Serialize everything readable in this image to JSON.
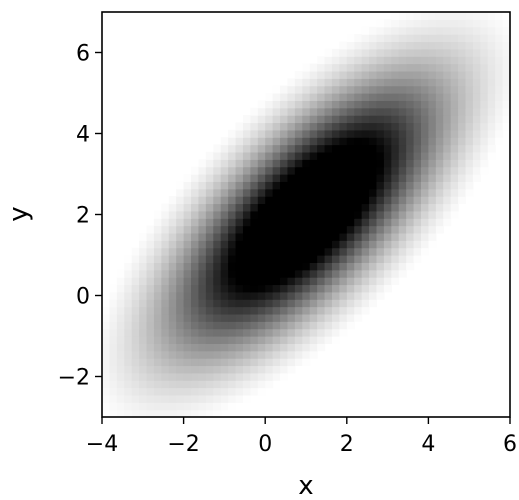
{
  "chart_data": {
    "type": "heatmap",
    "title": "",
    "xlabel": "x",
    "ylabel": "y",
    "xlim": [
      -4,
      6
    ],
    "ylim": [
      -3,
      7
    ],
    "x_ticks": [
      -4,
      -2,
      0,
      2,
      4,
      6
    ],
    "y_ticks": [
      -2,
      0,
      2,
      4,
      6
    ],
    "x_tick_labels": [
      "−4",
      "−2",
      "0",
      "2",
      "4",
      "6"
    ],
    "y_tick_labels": [
      "−2",
      "0",
      "2",
      "4",
      "6"
    ],
    "grid": false,
    "colormap": "gray_r",
    "colors": {
      "low": "#ffffff",
      "high": "#000000"
    },
    "density": {
      "kind": "bivariate-gaussian",
      "mean": [
        1,
        2
      ],
      "covariance": [
        [
          5.0,
          3.6
        ],
        [
          3.6,
          5.0
        ]
      ],
      "saturation_fraction_of_peak": 0.72,
      "zero_below_fraction_of_peak": 0.06,
      "resolution": [
        55,
        55
      ]
    }
  }
}
